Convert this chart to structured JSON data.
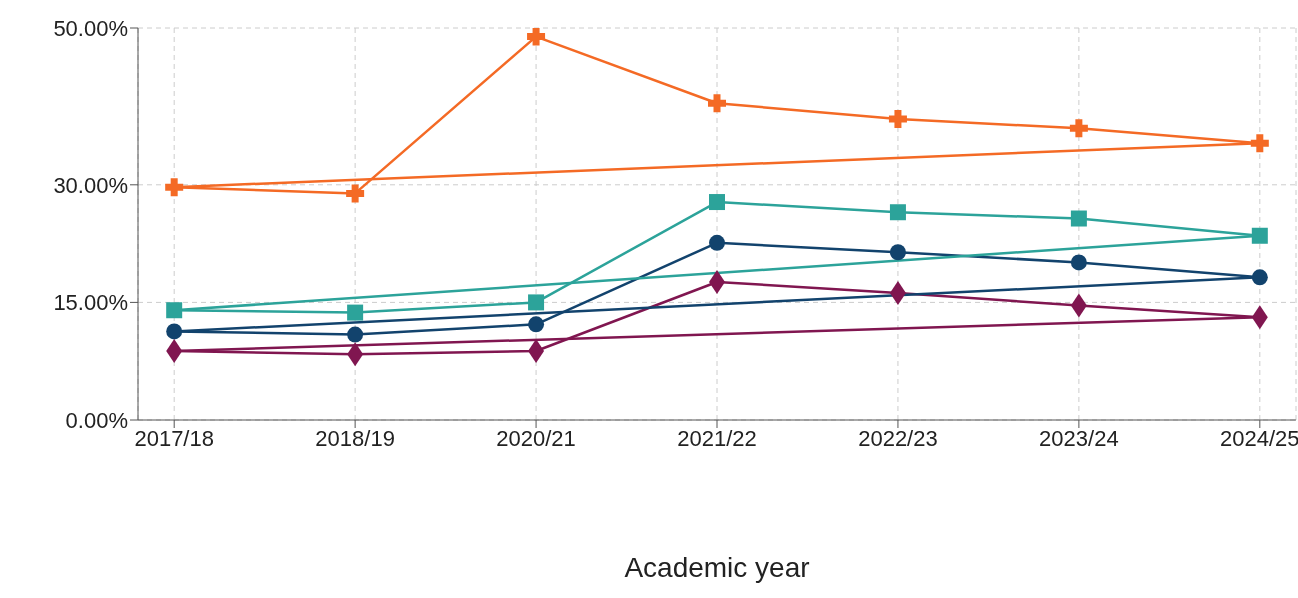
{
  "chart_data": {
    "type": "line",
    "xlabel": "Academic year",
    "categories": [
      "2017/18",
      "2018/19",
      "2020/21",
      "2021/22",
      "2022/23",
      "2023/24",
      "2024/25"
    ],
    "ylim": [
      0,
      50
    ],
    "yticks": [
      {
        "value": 0,
        "label": "0.00%"
      },
      {
        "value": 15,
        "label": "15.00%"
      },
      {
        "value": 30,
        "label": "30.00%"
      },
      {
        "value": 50,
        "label": "50.00%"
      }
    ],
    "grid": true,
    "series": [
      {
        "color": "#f46a25",
        "marker": "cross",
        "values": [
          29.7,
          28.9,
          48.9,
          40.4,
          38.4,
          37.2,
          35.3
        ]
      },
      {
        "color": "#2ca39a",
        "marker": "square",
        "values": [
          14.0,
          13.7,
          15.0,
          27.8,
          26.5,
          25.7,
          23.5
        ]
      },
      {
        "color": "#12436d",
        "marker": "circle",
        "values": [
          11.3,
          10.9,
          12.2,
          22.6,
          21.4,
          20.1,
          18.2
        ]
      },
      {
        "color": "#801650",
        "marker": "diamond",
        "values": [
          8.8,
          8.4,
          8.8,
          17.6,
          16.2,
          14.6,
          13.1
        ]
      },
      {
        "color": "#f46a25",
        "x": [
          "2017/18",
          "2024/25"
        ],
        "values": [
          29.7,
          35.3
        ]
      },
      {
        "color": "#2ca39a",
        "x": [
          "2017/18",
          "2024/25"
        ],
        "values": [
          14.0,
          23.5
        ]
      },
      {
        "color": "#12436d",
        "x": [
          "2017/18",
          "2024/25"
        ],
        "values": [
          11.3,
          18.2
        ]
      },
      {
        "color": "#801650",
        "x": [
          "2017/18",
          "2024/25"
        ],
        "values": [
          8.8,
          13.1
        ]
      }
    ]
  }
}
